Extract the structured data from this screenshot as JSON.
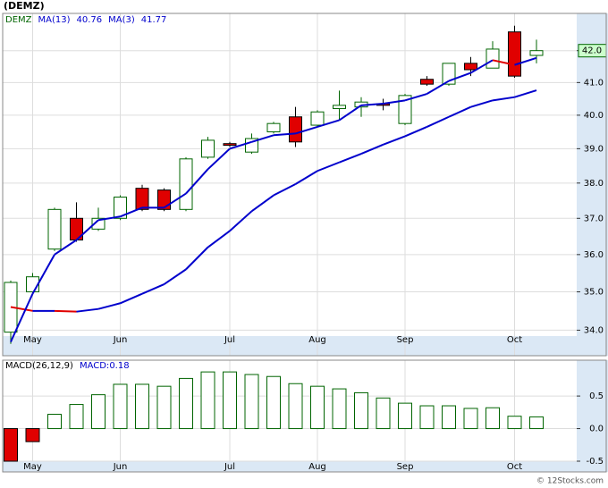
{
  "chart_data": [
    {
      "type": "candlestick",
      "title": "(DEMZ)",
      "categories": [
        null,
        "May",
        null,
        null,
        null,
        "Jun",
        null,
        null,
        null,
        null,
        "Jul",
        null,
        null,
        null,
        "Aug",
        null,
        null,
        null,
        "Sep",
        null,
        null,
        null,
        null,
        "Oct",
        null
      ],
      "log_scale": true,
      "grid": true,
      "ylim": [
        33.35,
        43.2
      ],
      "yticks": [
        {
          "value": 34,
          "label": "34.0"
        },
        {
          "value": 35,
          "label": "35.0"
        },
        {
          "value": 36,
          "label": "36.0"
        },
        {
          "value": 37,
          "label": "37.0"
        },
        {
          "value": 38,
          "label": "38.0"
        },
        {
          "value": 39,
          "label": "39.0"
        },
        {
          "value": 40,
          "label": "40.0"
        },
        {
          "value": 41,
          "label": "41.0"
        },
        {
          "value": 42,
          "label": "42.0"
        }
      ],
      "series": [
        {
          "name": "DEMZ",
          "color": "#006400",
          "down_color": "#e00000",
          "last_value_label": "42.0",
          "open": [
            33.95,
            35.0,
            36.15,
            37.0,
            36.7,
            37.0,
            37.85,
            37.8,
            37.25,
            38.75,
            39.15,
            38.9,
            39.5,
            39.95,
            39.7,
            40.2,
            40.25,
            40.35,
            39.75,
            41.1,
            40.95,
            41.6,
            41.45,
            42.6,
            41.85
          ],
          "high": [
            35.3,
            35.5,
            37.3,
            37.45,
            37.3,
            37.65,
            37.95,
            37.85,
            38.75,
            39.35,
            39.2,
            39.45,
            39.8,
            40.25,
            40.15,
            40.75,
            40.55,
            40.5,
            40.65,
            41.2,
            41.6,
            41.8,
            42.3,
            42.8,
            42.35
          ],
          "low": [
            33.65,
            34.95,
            36.1,
            36.35,
            36.65,
            36.95,
            37.2,
            37.2,
            37.2,
            38.7,
            39.05,
            38.85,
            39.45,
            39.05,
            39.65,
            39.85,
            39.95,
            40.15,
            39.7,
            40.9,
            40.9,
            41.2,
            41.45,
            41.15,
            41.6
          ],
          "close": [
            35.25,
            35.4,
            37.25,
            36.4,
            37.0,
            37.6,
            37.25,
            37.25,
            38.7,
            39.25,
            39.1,
            39.3,
            39.75,
            39.2,
            40.1,
            40.3,
            40.4,
            40.3,
            40.6,
            40.95,
            41.6,
            41.4,
            42.05,
            41.2,
            42
          ]
        },
        {
          "name": "MA(13)",
          "color": "#0000cc",
          "down_color": "#e00000",
          "values": [
            34.6,
            34.5,
            34.5,
            34.48,
            34.55,
            34.7,
            34.95,
            35.2,
            35.6,
            36.2,
            36.65,
            37.2,
            37.65,
            37.97,
            38.35,
            38.6,
            38.85,
            39.12,
            39.37,
            39.65,
            39.95,
            40.25,
            40.45,
            40.55,
            40.76
          ]
        },
        {
          "name": "MA(3)",
          "color": "#0000cc",
          "down_color": "#e00000",
          "values": [
            33.7,
            34.95,
            36.0,
            36.4,
            36.95,
            37.05,
            37.3,
            37.3,
            37.7,
            38.4,
            39.0,
            39.2,
            39.4,
            39.45,
            39.65,
            39.85,
            40.3,
            40.35,
            40.45,
            40.65,
            41.05,
            41.3,
            41.7,
            41.55,
            41.77
          ]
        }
      ]
    },
    {
      "type": "bar",
      "categories": [
        null,
        "May",
        null,
        null,
        null,
        "Jun",
        null,
        null,
        null,
        null,
        "Jul",
        null,
        null,
        null,
        "Aug",
        null,
        null,
        null,
        "Sep",
        null,
        null,
        null,
        null,
        "Oct",
        null
      ],
      "grid": true,
      "ylim": [
        -0.5,
        1.05
      ],
      "yticks": [
        -0.5,
        {
          "value": 0,
          "label": "0.0"
        },
        0.5
      ],
      "readout_label": "MACD:",
      "series": [
        {
          "name": "MACD(26,12,9)",
          "color": "#006400",
          "down_color": "#e00000",
          "values": [
            -0.5,
            -0.2,
            0.22,
            0.37,
            0.52,
            0.68,
            0.68,
            0.65,
            0.77,
            0.87,
            0.87,
            0.83,
            0.8,
            0.69,
            0.65,
            0.61,
            0.55,
            0.47,
            0.39,
            0.35,
            0.35,
            0.31,
            0.32,
            0.19,
            0.18
          ]
        }
      ]
    }
  ],
  "watermark": "© 12Stocks.com"
}
